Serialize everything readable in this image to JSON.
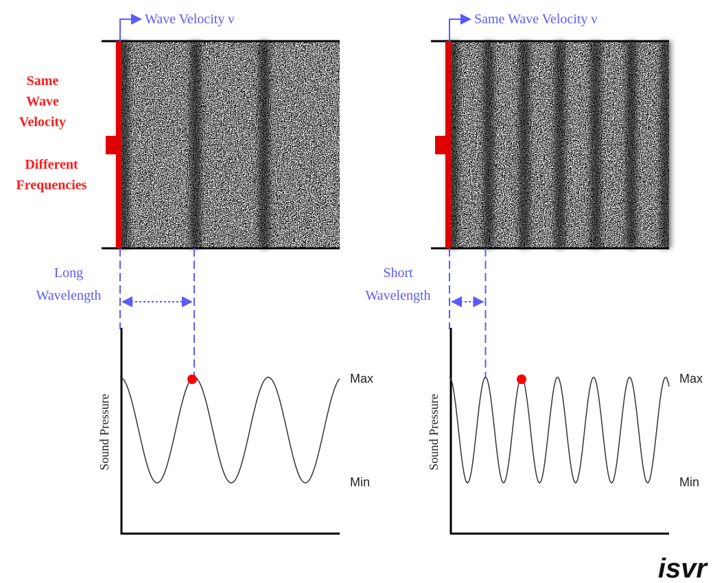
{
  "side_note": {
    "lines": [
      "Same",
      "Wave",
      "Velocity",
      "Different",
      "Frequencies"
    ]
  },
  "left_panel": {
    "velocity_label": "Wave Velocity ν",
    "wavelength_label": [
      "Long",
      "Wavelength"
    ],
    "y_axis_label": "Sound Pressure",
    "max_label": "Max",
    "min_label": "Min"
  },
  "right_panel": {
    "velocity_label": "Same Wave Velocity ν",
    "wavelength_label": [
      "Short",
      "Wavelength"
    ],
    "y_axis_label": "Sound Pressure",
    "max_label": "Max",
    "min_label": "Min"
  },
  "logo": "isvr"
}
